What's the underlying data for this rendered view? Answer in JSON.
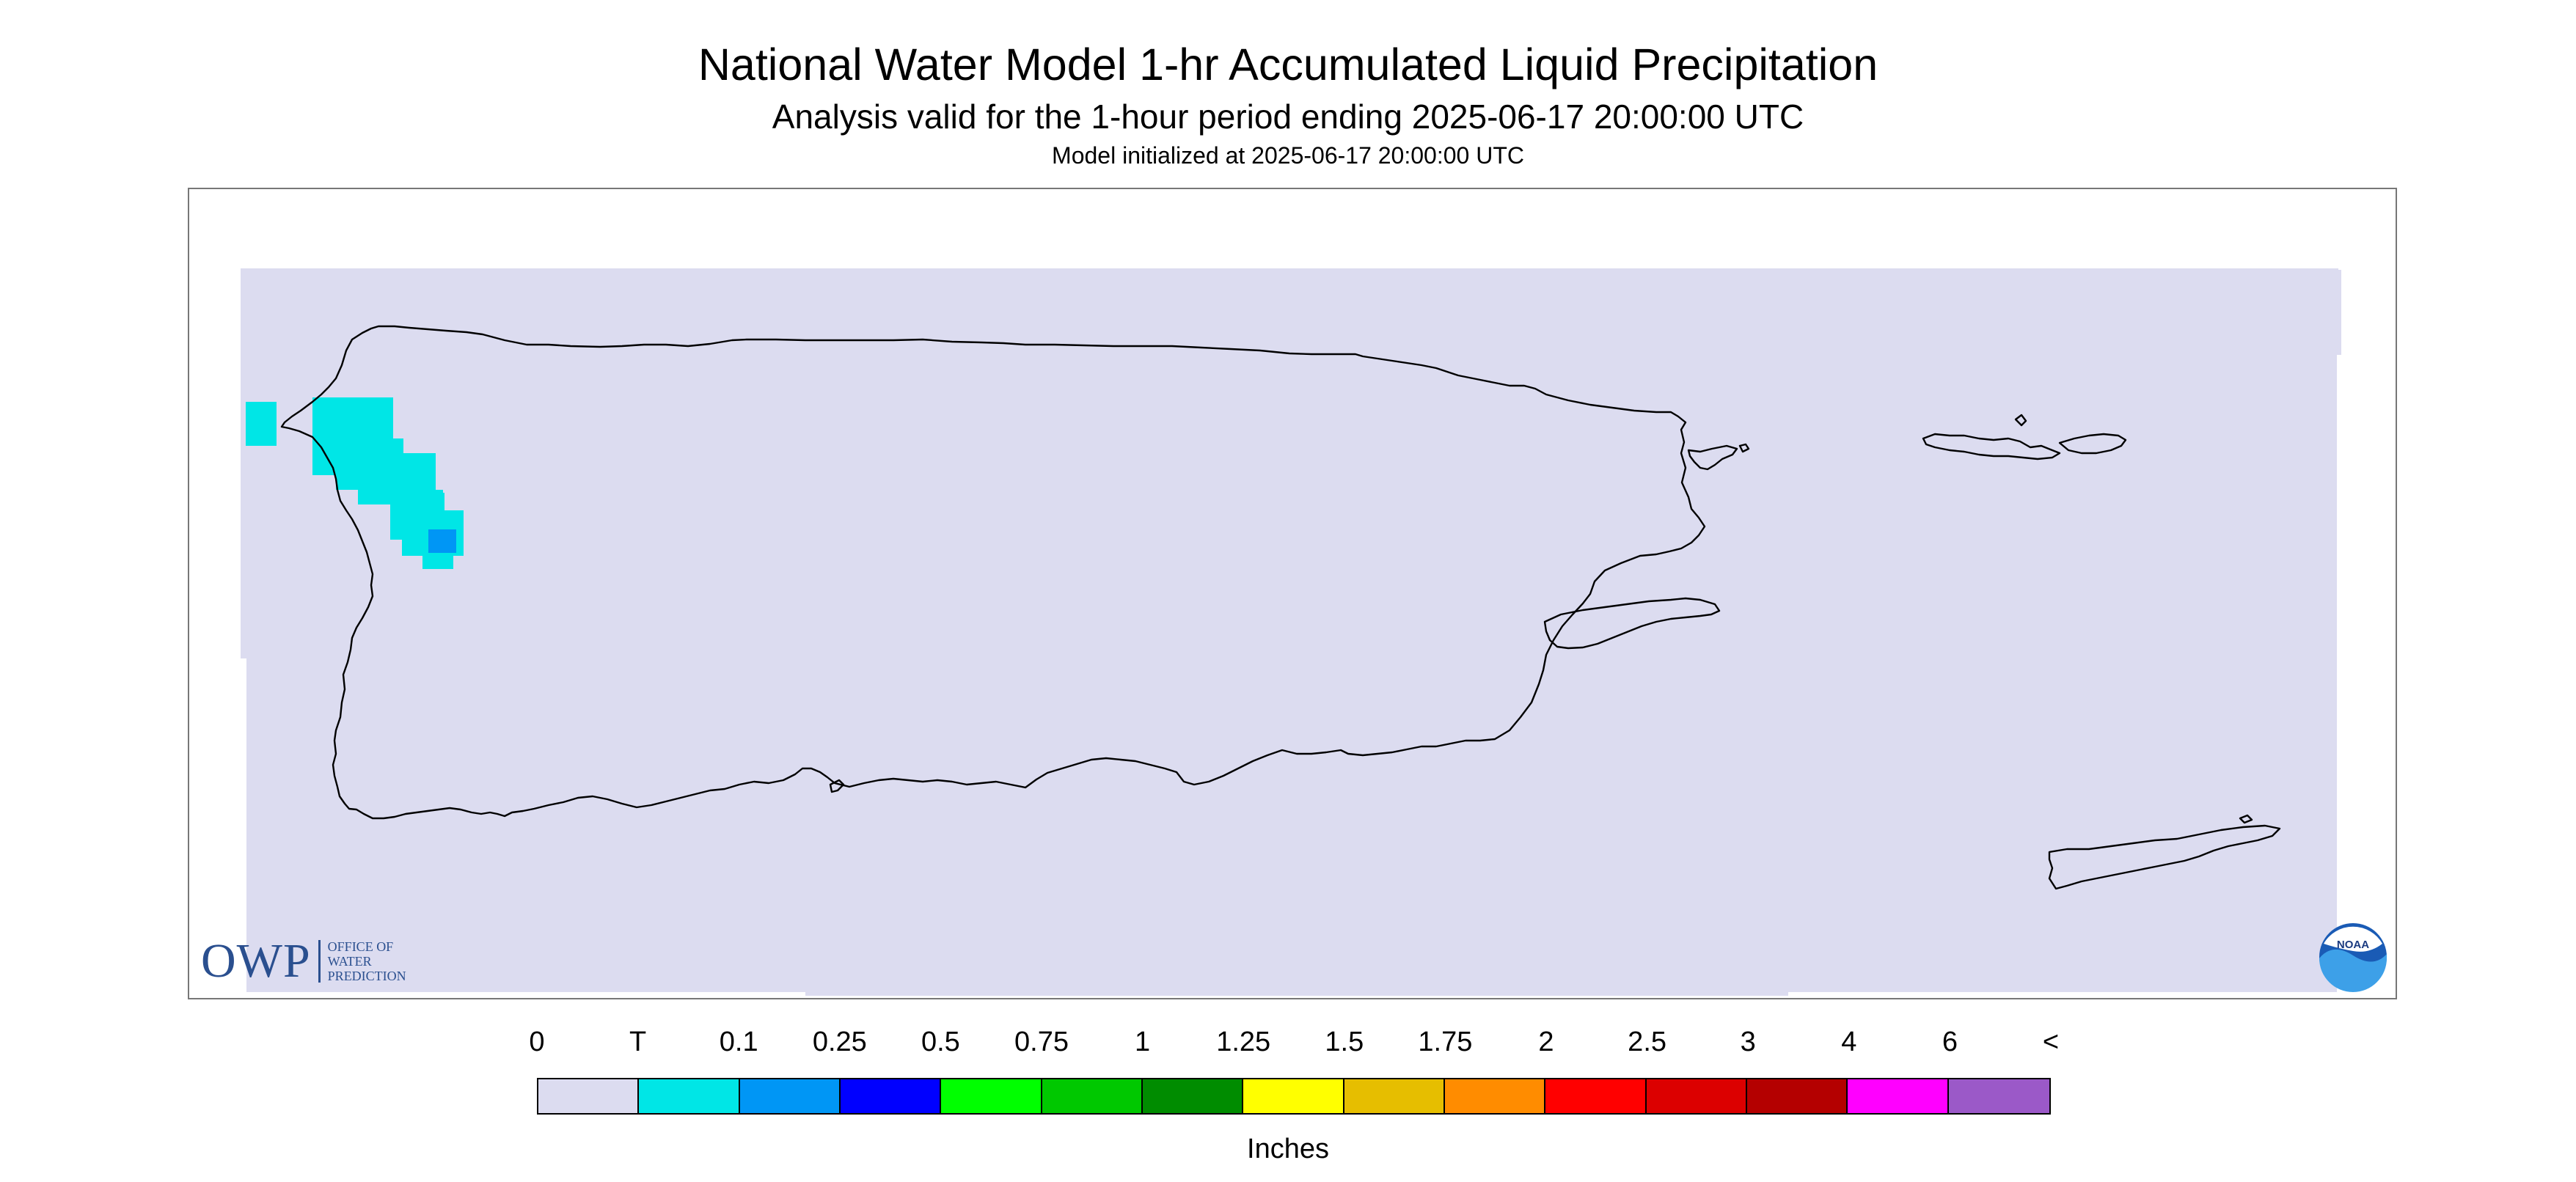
{
  "header": {
    "title": "National Water Model 1-hr Accumulated Liquid Precipitation",
    "subtitle": "Analysis valid for the 1-hour period ending 2025-06-17 20:00:00 UTC",
    "initialized": "Model initialized at 2025-06-17 20:00:00 UTC"
  },
  "map": {
    "background_color": "#dcdcf0",
    "coastline_color": "#000000",
    "precip_colors": {
      "trace": "#00e6e6",
      "light": "#0096f5"
    }
  },
  "logos": {
    "owp": {
      "letters": "OWP",
      "lines": [
        "OFFICE OF",
        "WATER",
        "PREDICTION"
      ]
    },
    "noaa": {
      "text": "NOAA"
    }
  },
  "legend": {
    "units": "Inches",
    "labels": [
      "0",
      "T",
      "0.1",
      "0.25",
      "0.5",
      "0.75",
      "1",
      "1.25",
      "1.5",
      "1.75",
      "2",
      "2.5",
      "3",
      "4",
      "6",
      "<"
    ],
    "colors": [
      "#dcdcf0",
      "#00e6e6",
      "#0096f5",
      "#0000ff",
      "#00ff00",
      "#00c800",
      "#008c00",
      "#ffff00",
      "#e6be00",
      "#ff8c00",
      "#ff0000",
      "#dc0000",
      "#b40000",
      "#ff00ff",
      "#9b59c8"
    ]
  }
}
